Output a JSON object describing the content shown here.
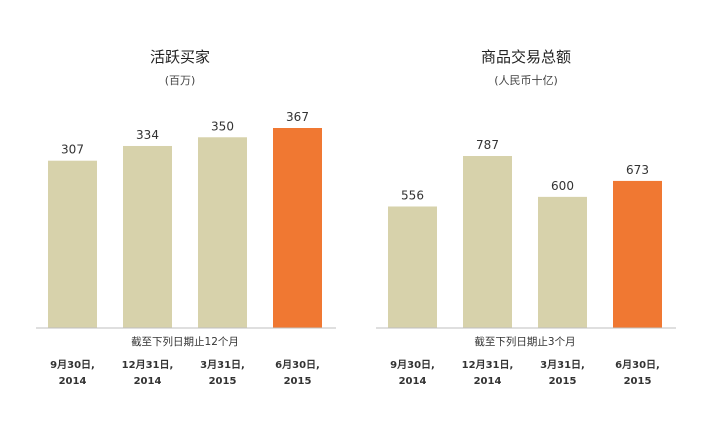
{
  "colors": {
    "bar": "#d7d2ab",
    "highlight": "#f07832",
    "axis": "#bfbfbf"
  },
  "chart_data": [
    {
      "type": "bar",
      "title": "活跃买家",
      "subtitle": "(百万)",
      "categories": [
        [
          "9月30日,",
          "2014"
        ],
        [
          "12月31日,",
          "2014"
        ],
        [
          "3月31日,",
          "2015"
        ],
        [
          "6月30日,",
          "2015"
        ]
      ],
      "values": [
        307,
        334,
        350,
        367
      ],
      "value_labels": [
        "307",
        "334",
        "350",
        "367"
      ],
      "highlight_index": 3,
      "xlabel": "截至下列日期止12个月",
      "ylim": [
        0,
        367
      ]
    },
    {
      "type": "bar",
      "title": "商品交易总额",
      "subtitle": "(人民币十亿)",
      "categories": [
        [
          "9月30日,",
          "2014"
        ],
        [
          "12月31日,",
          "2014"
        ],
        [
          "3月31日,",
          "2015"
        ],
        [
          "6月30日,",
          "2015"
        ]
      ],
      "values": [
        556,
        787,
        600,
        673
      ],
      "value_labels": [
        "556",
        "787",
        "600",
        "673"
      ],
      "highlight_index": 3,
      "xlabel": "截至下列日期止3个月",
      "ylim": [
        0,
        787
      ]
    }
  ]
}
